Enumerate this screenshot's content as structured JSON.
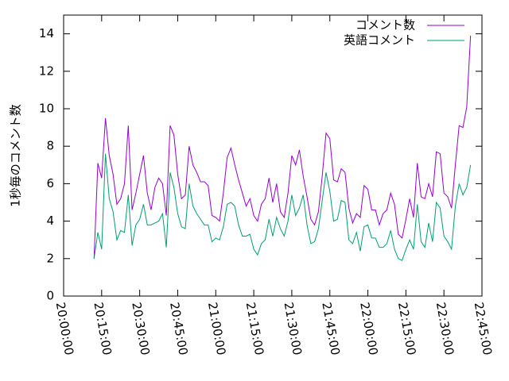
{
  "chart_data": {
    "type": "line",
    "ylabel": "1秒毎のコメント数",
    "xlim": [
      "20:00:00",
      "22:45:00"
    ],
    "xticks": [
      "20:00:00",
      "20:15:00",
      "20:30:00",
      "20:45:00",
      "21:00:00",
      "21:15:00",
      "21:30:00",
      "21:45:00",
      "22:00:00",
      "22:15:00",
      "22:30:00",
      "22:45:00"
    ],
    "ylim": [
      0,
      15
    ],
    "yticks": [
      0,
      2,
      4,
      6,
      8,
      10,
      12,
      14
    ],
    "legend": "top-right",
    "x": [
      "20:12:00",
      "20:13:30",
      "20:15:00",
      "20:16:30",
      "20:18:00",
      "20:19:30",
      "20:21:00",
      "20:22:30",
      "20:24:00",
      "20:25:30",
      "20:27:00",
      "20:28:30",
      "20:30:00",
      "20:31:30",
      "20:33:00",
      "20:34:30",
      "20:36:00",
      "20:37:30",
      "20:39:00",
      "20:40:30",
      "20:42:00",
      "20:43:30",
      "20:45:00",
      "20:46:30",
      "20:48:00",
      "20:49:30",
      "20:51:00",
      "20:52:30",
      "20:54:00",
      "20:55:30",
      "20:57:00",
      "20:58:30",
      "21:00:00",
      "21:01:30",
      "21:03:00",
      "21:04:30",
      "21:06:00",
      "21:07:30",
      "21:09:00",
      "21:10:30",
      "21:12:00",
      "21:13:30",
      "21:15:00",
      "21:16:30",
      "21:18:00",
      "21:19:30",
      "21:21:00",
      "21:22:30",
      "21:24:00",
      "21:25:30",
      "21:27:00",
      "21:28:30",
      "21:30:00",
      "21:31:30",
      "21:33:00",
      "21:34:30",
      "21:36:00",
      "21:37:30",
      "21:39:00",
      "21:40:30",
      "21:42:00",
      "21:43:30",
      "21:45:00",
      "21:46:30",
      "21:48:00",
      "21:49:30",
      "21:51:00",
      "21:52:30",
      "21:54:00",
      "21:55:30",
      "21:57:00",
      "21:58:30",
      "22:00:00",
      "22:01:30",
      "22:03:00",
      "22:04:30",
      "22:06:00",
      "22:07:30",
      "22:09:00",
      "22:10:30",
      "22:12:00",
      "22:13:30",
      "22:15:00",
      "22:16:30",
      "22:18:00",
      "22:19:30",
      "22:21:00",
      "22:22:30",
      "22:24:00",
      "22:25:30",
      "22:27:00",
      "22:28:30",
      "22:30:00",
      "22:31:30",
      "22:33:00",
      "22:34:30",
      "22:36:00",
      "22:37:30",
      "22:39:00",
      "22:40:30"
    ],
    "series": [
      {
        "name": "コメント数",
        "color": "#9400d3",
        "values": [
          2.0,
          7.1,
          6.3,
          9.5,
          7.5,
          6.5,
          4.9,
          5.2,
          6.0,
          9.1,
          4.6,
          5.5,
          6.5,
          7.5,
          5.5,
          4.6,
          5.8,
          6.3,
          6.0,
          4.3,
          9.1,
          8.6,
          6.5,
          5.2,
          5.4,
          8.0,
          7.0,
          6.6,
          6.1,
          6.1,
          5.9,
          4.3,
          4.2,
          4.0,
          5.5,
          7.4,
          7.9,
          7.0,
          6.2,
          5.5,
          4.8,
          5.2,
          4.3,
          4.0,
          4.9,
          5.2,
          6.3,
          5.0,
          6.0,
          4.5,
          4.2,
          5.5,
          7.5,
          7.0,
          7.8,
          6.4,
          5.3,
          4.1,
          3.8,
          4.5,
          6.4,
          8.7,
          8.4,
          6.2,
          6.1,
          6.8,
          6.6,
          4.7,
          3.9,
          4.4,
          4.2,
          5.9,
          5.7,
          4.6,
          4.6,
          3.8,
          4.4,
          4.6,
          5.5,
          4.9,
          3.3,
          3.1,
          4.1,
          5.2,
          4.2,
          7.1,
          5.3,
          5.2,
          6.0,
          5.3,
          7.7,
          7.6,
          5.5,
          5.3,
          4.7,
          7.0,
          9.1,
          9.0,
          10.1,
          13.9
        ]
      },
      {
        "name": "英語コメント",
        "color": "#009e73",
        "values": [
          2.0,
          3.4,
          2.5,
          7.6,
          5.2,
          4.5,
          3.0,
          3.5,
          3.4,
          5.4,
          2.7,
          3.8,
          4.1,
          4.9,
          3.8,
          3.8,
          3.9,
          4.0,
          4.4,
          2.6,
          6.6,
          5.8,
          4.4,
          3.7,
          3.6,
          6.0,
          4.8,
          4.4,
          4.1,
          3.8,
          3.8,
          2.9,
          3.1,
          3.0,
          3.7,
          4.9,
          5.0,
          4.8,
          3.8,
          3.2,
          3.2,
          3.3,
          2.5,
          2.2,
          2.8,
          3.0,
          4.1,
          3.2,
          4.2,
          3.6,
          3.2,
          4.0,
          5.4,
          4.3,
          4.7,
          5.4,
          3.8,
          2.8,
          2.9,
          3.6,
          5.1,
          6.6,
          5.6,
          4.0,
          4.1,
          5.1,
          5.0,
          3.0,
          2.8,
          3.4,
          2.4,
          3.7,
          3.8,
          3.1,
          3.1,
          2.6,
          2.6,
          2.8,
          3.5,
          2.5,
          2.0,
          1.9,
          2.5,
          3.0,
          2.5,
          4.9,
          2.9,
          2.6,
          3.9,
          2.9,
          5.0,
          4.7,
          3.2,
          2.9,
          2.5,
          4.8,
          6.0,
          5.4,
          5.8,
          7.0
        ]
      }
    ]
  }
}
